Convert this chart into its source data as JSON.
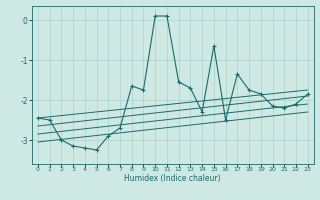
{
  "xlabel": "Humidex (Indice chaleur)",
  "ylabel": "",
  "background_color": "#cee8e4",
  "line_color": "#1a6b6b",
  "grid_color": "#aed0cc",
  "xlim": [
    -0.5,
    23.5
  ],
  "ylim": [
    -3.6,
    0.35
  ],
  "yticks": [
    0,
    -1,
    -2,
    -3
  ],
  "xticks": [
    0,
    1,
    2,
    3,
    4,
    5,
    6,
    7,
    8,
    9,
    10,
    11,
    12,
    13,
    14,
    15,
    16,
    17,
    18,
    19,
    20,
    21,
    22,
    23
  ],
  "main_x": [
    0,
    1,
    2,
    3,
    4,
    5,
    6,
    7,
    8,
    9,
    10,
    11,
    12,
    13,
    14,
    15,
    16,
    17,
    18,
    19,
    20,
    21,
    22,
    23
  ],
  "main_y": [
    -2.45,
    -2.5,
    -3.0,
    -3.15,
    -3.2,
    -3.25,
    -2.9,
    -2.7,
    -1.65,
    -1.75,
    0.1,
    0.1,
    -1.55,
    -1.7,
    -2.3,
    -0.65,
    -2.5,
    -1.35,
    -1.75,
    -1.85,
    -2.15,
    -2.2,
    -2.1,
    -1.85
  ],
  "line1_x": [
    0,
    23
  ],
  "line1_y": [
    -2.45,
    -1.75
  ],
  "line2_x": [
    0,
    23
  ],
  "line2_y": [
    -2.65,
    -1.9
  ],
  "line3_x": [
    0,
    23
  ],
  "line3_y": [
    -2.85,
    -2.1
  ],
  "line4_x": [
    0,
    23
  ],
  "line4_y": [
    -3.05,
    -2.3
  ],
  "marker": "+",
  "xlabel_fontsize": 5.5,
  "xtick_fontsize": 4.5,
  "ytick_fontsize": 5.5
}
